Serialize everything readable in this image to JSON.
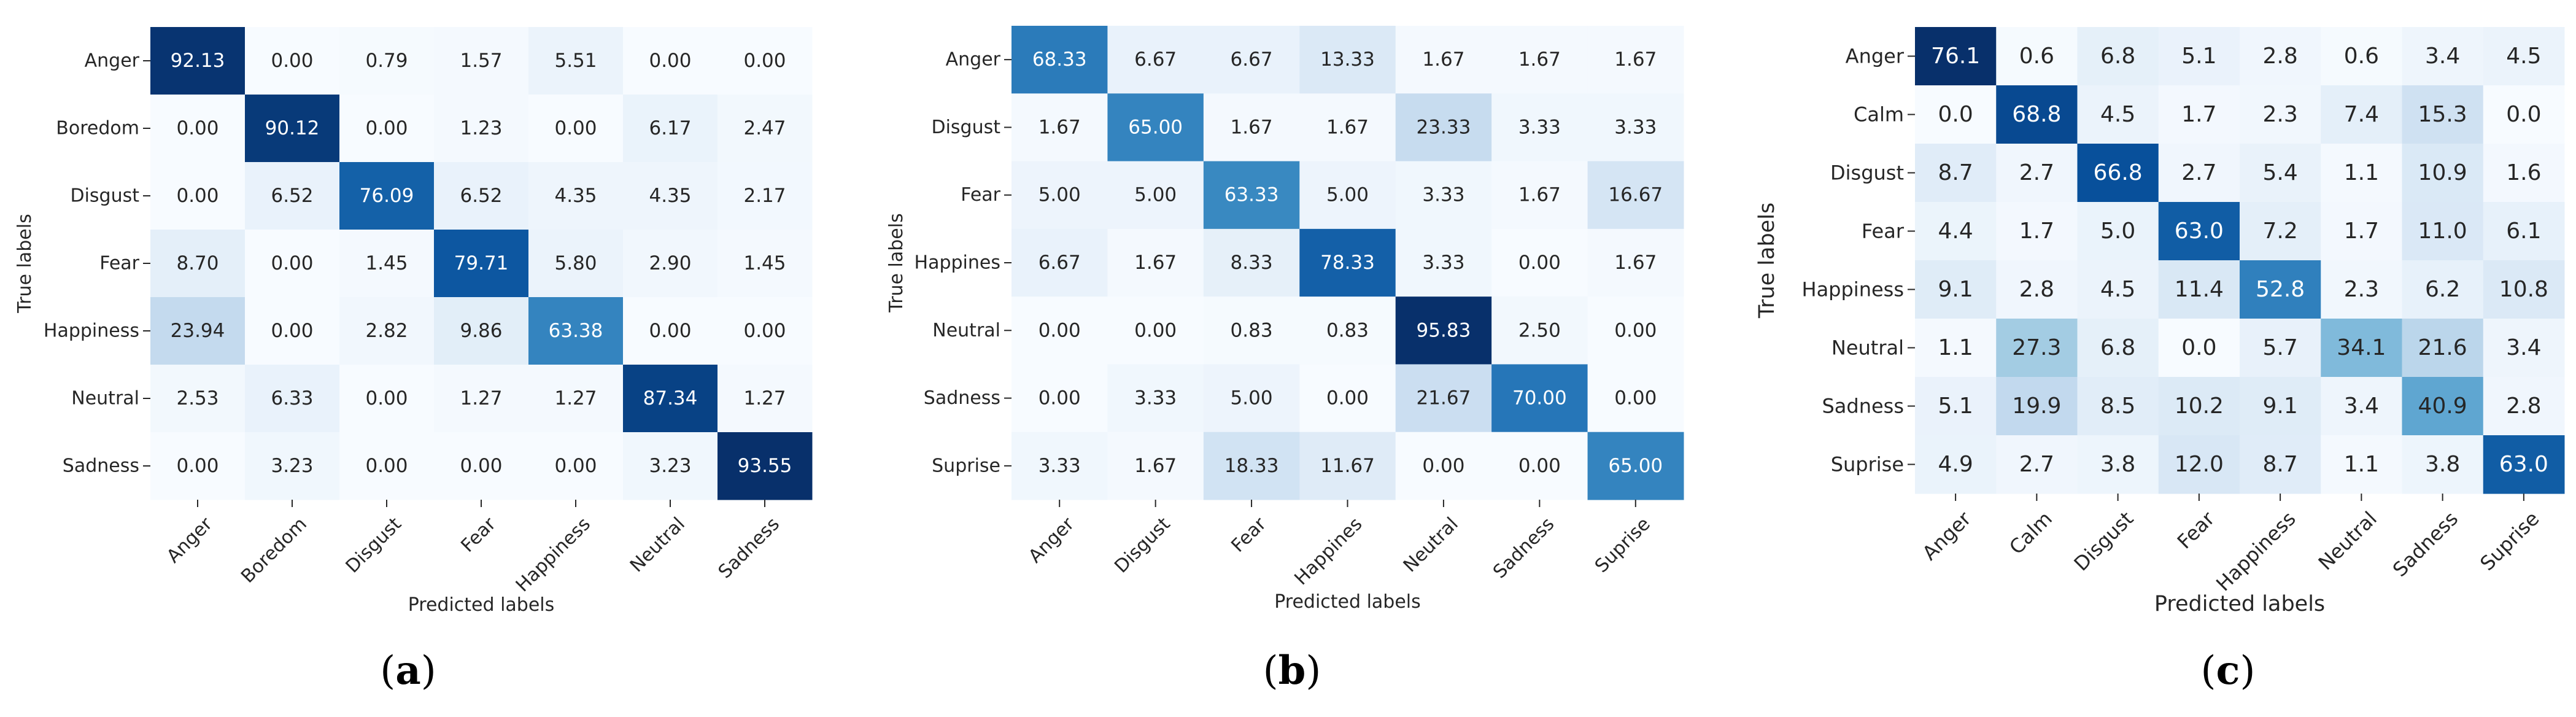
{
  "colors": {
    "low": "#f7fbff",
    "high": "#08306b"
  },
  "chart_data": [
    {
      "type": "heatmap",
      "panel_label": "a",
      "xlabel": "Predicted labels",
      "ylabel": "True labels",
      "decimals": 2,
      "categories": [
        "Anger",
        "Boredom",
        "Disgust",
        "Fear",
        "Happiness",
        "Neutral",
        "Sadness"
      ],
      "values": [
        [
          92.13,
          0.0,
          0.79,
          1.57,
          5.51,
          0.0,
          0.0
        ],
        [
          0.0,
          90.12,
          0.0,
          1.23,
          0.0,
          6.17,
          2.47
        ],
        [
          0.0,
          6.52,
          76.09,
          6.52,
          4.35,
          4.35,
          2.17
        ],
        [
          8.7,
          0.0,
          1.45,
          79.71,
          5.8,
          2.9,
          1.45
        ],
        [
          23.94,
          0.0,
          2.82,
          9.86,
          63.38,
          0.0,
          0.0
        ],
        [
          2.53,
          6.33,
          0.0,
          1.27,
          1.27,
          87.34,
          1.27
        ],
        [
          0.0,
          3.23,
          0.0,
          0.0,
          0.0,
          3.23,
          93.55
        ]
      ]
    },
    {
      "type": "heatmap",
      "panel_label": "b",
      "xlabel": "Predicted labels",
      "ylabel": "True labels",
      "decimals": 2,
      "categories": [
        "Anger",
        "Disgust",
        "Fear",
        "Happines",
        "Neutral",
        "Sadness",
        "Suprise"
      ],
      "values": [
        [
          68.33,
          6.67,
          6.67,
          13.33,
          1.67,
          1.67,
          1.67
        ],
        [
          1.67,
          65.0,
          1.67,
          1.67,
          23.33,
          3.33,
          3.33
        ],
        [
          5.0,
          5.0,
          63.33,
          5.0,
          3.33,
          1.67,
          16.67
        ],
        [
          6.67,
          1.67,
          8.33,
          78.33,
          3.33,
          0.0,
          1.67
        ],
        [
          0.0,
          0.0,
          0.83,
          0.83,
          95.83,
          2.5,
          0.0
        ],
        [
          0.0,
          3.33,
          5.0,
          0.0,
          21.67,
          70.0,
          0.0
        ],
        [
          3.33,
          1.67,
          18.33,
          11.67,
          0.0,
          0.0,
          65.0
        ]
      ]
    },
    {
      "type": "heatmap",
      "panel_label": "c",
      "xlabel": "Predicted labels",
      "ylabel": "True labels",
      "decimals": 1,
      "categories": [
        "Anger",
        "Calm",
        "Disgust",
        "Fear",
        "Happiness",
        "Neutral",
        "Sadness",
        "Suprise"
      ],
      "values": [
        [
          76.1,
          0.6,
          6.8,
          5.1,
          2.8,
          0.6,
          3.4,
          4.5
        ],
        [
          0.0,
          68.8,
          4.5,
          1.7,
          2.3,
          7.4,
          15.3,
          0.0
        ],
        [
          8.7,
          2.7,
          66.8,
          2.7,
          5.4,
          1.1,
          10.9,
          1.6
        ],
        [
          4.4,
          1.7,
          5.0,
          63.0,
          7.2,
          1.7,
          11.0,
          6.1
        ],
        [
          9.1,
          2.8,
          4.5,
          11.4,
          52.8,
          2.3,
          6.2,
          10.8
        ],
        [
          1.1,
          27.3,
          6.8,
          0.0,
          5.7,
          34.1,
          21.6,
          3.4
        ],
        [
          5.1,
          19.9,
          8.5,
          10.2,
          9.1,
          3.4,
          40.9,
          2.8
        ],
        [
          4.9,
          2.7,
          3.8,
          12.0,
          8.7,
          1.1,
          3.8,
          63.0
        ]
      ]
    }
  ]
}
